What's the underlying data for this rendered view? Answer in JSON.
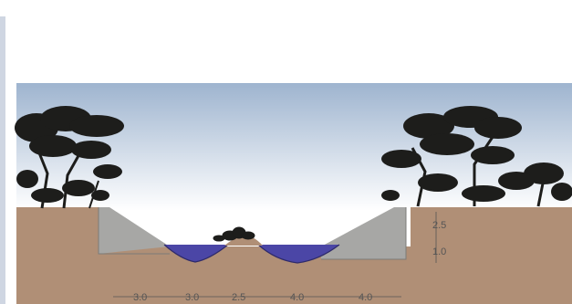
{
  "colors": {
    "sky_top": "#9eb4cf",
    "sky_bottom": "#ffffff",
    "ground": "#b08f76",
    "embankment": "#a7a7a5",
    "water": "#4b46a6",
    "tree": "#1d1d1b",
    "dimension": "#555555"
  },
  "widths": [
    {
      "label": "3.0"
    },
    {
      "label": "3.0"
    },
    {
      "label": "2.5"
    },
    {
      "label": "4.0"
    },
    {
      "label": "4.0"
    }
  ],
  "heights": [
    {
      "label": "2.5"
    },
    {
      "label": "1.0"
    }
  ]
}
